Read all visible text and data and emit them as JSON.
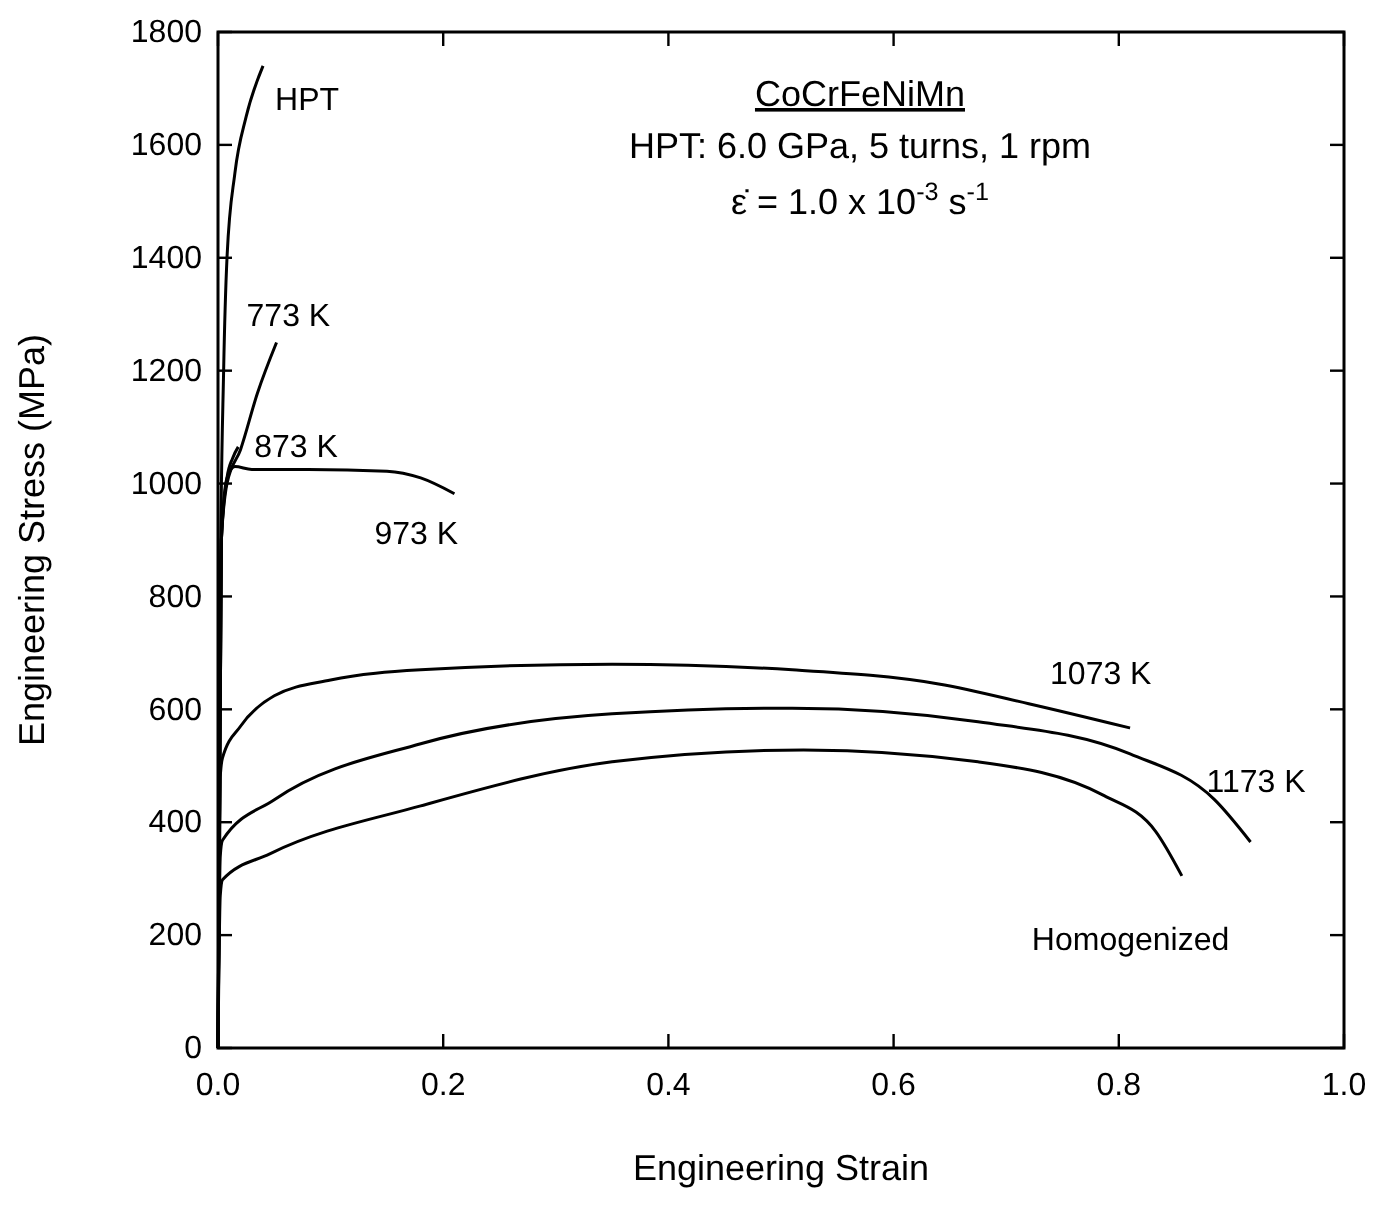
{
  "chart_data": {
    "type": "line",
    "title": "CoCrFeNiMn",
    "subtitle": "HPT: 6.0 GPa, 5 turns, 1 rpm",
    "annotations": [
      "ε̇ = 1.0 x 10$^{-3}$ s$^{-1}$"
    ],
    "xlabel": "Engineering Strain",
    "ylabel": "Engineering Stress (MPa)",
    "xlim": [
      0,
      1
    ],
    "ylim": [
      0,
      1800
    ],
    "xticks": [
      {
        "value": 0,
        "label": "0.0"
      },
      {
        "value": 0.2,
        "label": "0.2"
      },
      {
        "value": 0.4,
        "label": "0.4"
      },
      {
        "value": 0.6,
        "label": "0.6"
      },
      {
        "value": 0.8,
        "label": "0.8"
      },
      {
        "value": 1,
        "label": "1.0"
      }
    ],
    "yticks": [
      0,
      200,
      400,
      600,
      800,
      1000,
      1200,
      1400,
      1600,
      1800
    ],
    "grid": false,
    "marker": "none",
    "line_style": "solid",
    "series": [
      {
        "name": "HPT",
        "color": "#000000",
        "x": [
          0,
          0.002,
          0.005,
          0.008,
          0.015,
          0.025,
          0.04
        ],
        "values": [
          0,
          800,
          1200,
          1400,
          1550,
          1650,
          1740
        ]
      },
      {
        "name": "773 K",
        "color": "#000000",
        "x": [
          0,
          0.003,
          0.008,
          0.02,
          0.035,
          0.052
        ],
        "values": [
          0,
          900,
          1000,
          1060,
          1160,
          1250
        ]
      },
      {
        "name": "873 K",
        "color": "#000000",
        "x": [
          0,
          0.003,
          0.008,
          0.013,
          0.018
        ],
        "values": [
          0,
          900,
          1010,
          1045,
          1065
        ]
      },
      {
        "name": "973 K",
        "color": "#000000",
        "x": [
          0,
          0.003,
          0.008,
          0.015,
          0.03,
          0.08,
          0.15,
          0.18,
          0.21
        ],
        "values": [
          0,
          900,
          1010,
          1030,
          1025,
          1025,
          1022,
          1010,
          982
        ]
      },
      {
        "name": "1073 K",
        "color": "#000000",
        "x": [
          0,
          0.002,
          0.004,
          0.02,
          0.05,
          0.1,
          0.18,
          0.35,
          0.51,
          0.64,
          0.72,
          0.81
        ],
        "values": [
          0,
          480,
          514,
          570,
          624,
          652,
          670,
          680,
          670,
          645,
          610,
          567
        ]
      },
      {
        "name": "1173 K",
        "color": "#000000",
        "x": [
          0,
          0.002,
          0.004,
          0.05,
          0.18,
          0.35,
          0.51,
          0.675,
          0.81,
          0.885,
          0.917
        ],
        "values": [
          0,
          340,
          368,
          440,
          539,
          592,
          602,
          578,
          521,
          440,
          365
        ]
      },
      {
        "name": "Homogenized",
        "color": "#000000",
        "x": [
          0,
          0.002,
          0.004,
          0.046,
          0.18,
          0.35,
          0.52,
          0.675,
          0.787,
          0.833,
          0.856
        ],
        "values": [
          0,
          270,
          298,
          344,
          429,
          507,
          528,
          507,
          447,
          383,
          305
        ]
      }
    ]
  }
}
